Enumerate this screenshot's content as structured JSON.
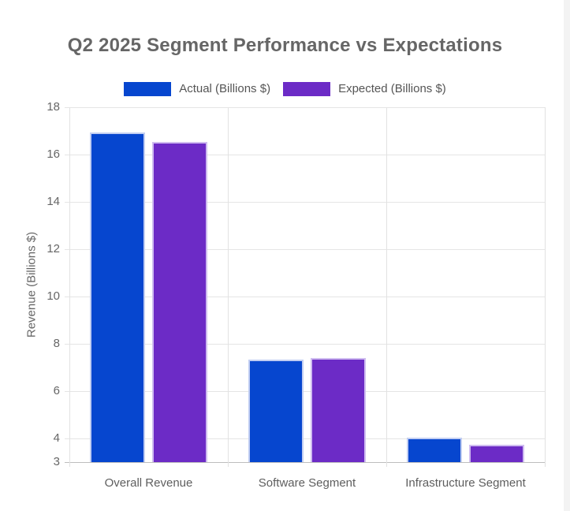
{
  "title": "Q2 2025 Segment Performance vs Expectations",
  "legend": {
    "position": "top",
    "items": [
      {
        "label": "Actual (Billions $)",
        "color": "#0646cf"
      },
      {
        "label": "Expected (Billions $)",
        "color": "#6c2bc6"
      }
    ]
  },
  "chart_data": {
    "type": "bar",
    "title": "Q2 2025 Segment Performance vs Expectations",
    "categories": [
      "Overall Revenue",
      "Software Segment",
      "Infrastructure Segment"
    ],
    "series": [
      {
        "name": "Actual (Billions $)",
        "color": "#0646cf",
        "border_color": "#c2cef2",
        "values": [
          16.95,
          7.35,
          4.05
        ]
      },
      {
        "name": "Expected (Billions $)",
        "color": "#6c2bc6",
        "border_color": "#cfbcf0",
        "values": [
          16.55,
          7.4,
          3.75
        ]
      }
    ],
    "xlabel": "",
    "ylabel": "Revenue (Billions $)",
    "ylim": [
      3,
      18
    ],
    "yticks": [
      18,
      16,
      14,
      12,
      10,
      8,
      6,
      4,
      3
    ],
    "grid": true,
    "legend_position": "top"
  },
  "colors": {
    "background": "#ffffff",
    "title_text": "#666666",
    "tick_text": "#666666",
    "category_text": "#5e5e5e",
    "legend_text": "#555555",
    "gridline": "#e5e5e5",
    "axis_baseline": "#bdbdbd",
    "scrollbar_track": "#f3f3f3"
  }
}
